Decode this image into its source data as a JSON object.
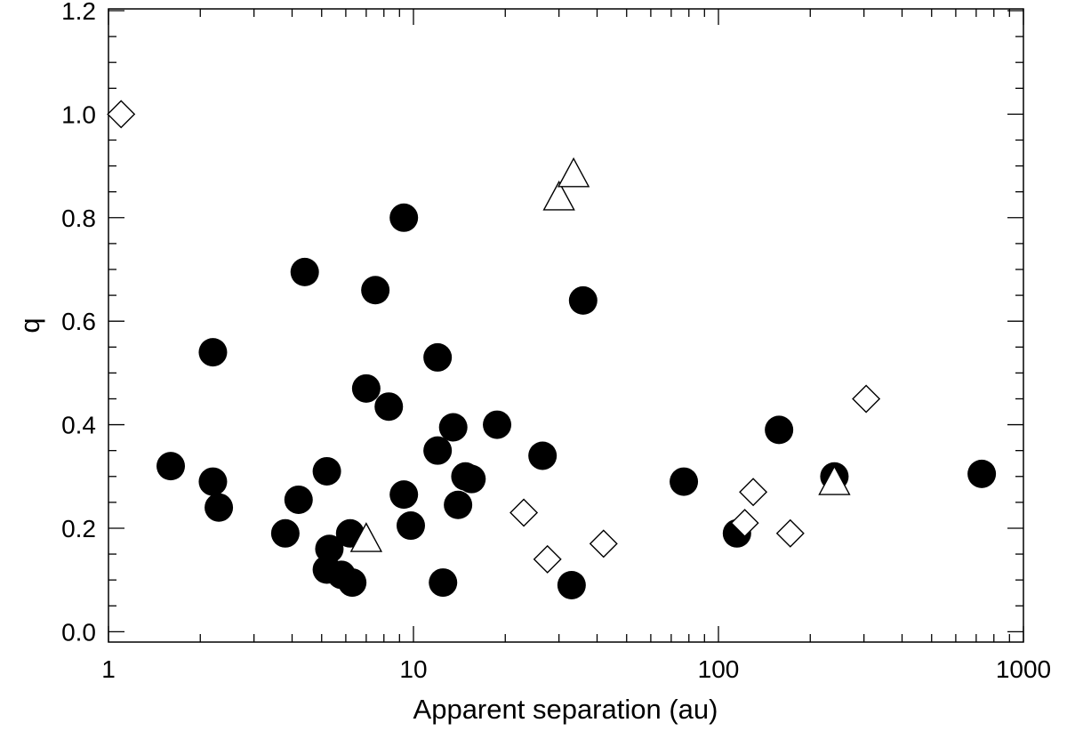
{
  "chart_data": {
    "type": "scatter",
    "title": "",
    "xlabel": "Apparent separation (au)",
    "ylabel": "q",
    "xscale": "log",
    "xlim": [
      1,
      1000
    ],
    "ylim": [
      -0.02,
      1.2
    ],
    "grid": false,
    "legend": "none",
    "x_tick_labels": [
      "1",
      "10",
      "100",
      "1000"
    ],
    "x_tick_values": [
      1,
      10,
      100,
      1000
    ],
    "y_tick_labels": [
      "0.0",
      "0.2",
      "0.4",
      "0.6",
      "0.8",
      "1.0",
      "1.2"
    ],
    "y_tick_values": [
      0.0,
      0.2,
      0.4,
      0.6,
      0.8,
      1.0,
      1.2
    ],
    "series": [
      {
        "marker": "filled-circle",
        "color": "#000000",
        "points": [
          [
            1.6,
            0.32
          ],
          [
            2.2,
            0.54
          ],
          [
            2.2,
            0.29
          ],
          [
            2.3,
            0.24
          ],
          [
            3.8,
            0.19
          ],
          [
            4.2,
            0.255
          ],
          [
            4.4,
            0.695
          ],
          [
            5.2,
            0.31
          ],
          [
            5.2,
            0.12
          ],
          [
            5.3,
            0.16
          ],
          [
            5.8,
            0.11
          ],
          [
            6.2,
            0.19
          ],
          [
            6.3,
            0.095
          ],
          [
            7.0,
            0.47
          ],
          [
            7.5,
            0.66
          ],
          [
            8.3,
            0.435
          ],
          [
            9.3,
            0.8
          ],
          [
            9.3,
            0.265
          ],
          [
            9.8,
            0.205
          ],
          [
            12.0,
            0.53
          ],
          [
            12.0,
            0.35
          ],
          [
            12.5,
            0.095
          ],
          [
            13.5,
            0.395
          ],
          [
            14.0,
            0.245
          ],
          [
            14.8,
            0.3
          ],
          [
            15.5,
            0.295
          ],
          [
            18.8,
            0.4
          ],
          [
            26.5,
            0.34
          ],
          [
            33.0,
            0.09
          ],
          [
            36.0,
            0.64
          ],
          [
            77.0,
            0.29
          ],
          [
            115.0,
            0.19
          ],
          [
            158.0,
            0.39
          ],
          [
            240.0,
            0.3
          ],
          [
            730.0,
            0.305
          ]
        ]
      },
      {
        "marker": "open-diamond",
        "color": "#000000",
        "points": [
          [
            1.1,
            1.0
          ],
          [
            23.0,
            0.23
          ],
          [
            27.5,
            0.14
          ],
          [
            42.0,
            0.17
          ],
          [
            122.0,
            0.21
          ],
          [
            130.0,
            0.27
          ],
          [
            172.0,
            0.19
          ],
          [
            305.0,
            0.45
          ]
        ]
      },
      {
        "marker": "open-triangle",
        "color": "#000000",
        "points": [
          [
            7.0,
            0.18
          ],
          [
            30.0,
            0.84
          ],
          [
            33.5,
            0.885
          ],
          [
            240.0,
            0.29
          ]
        ]
      }
    ]
  }
}
